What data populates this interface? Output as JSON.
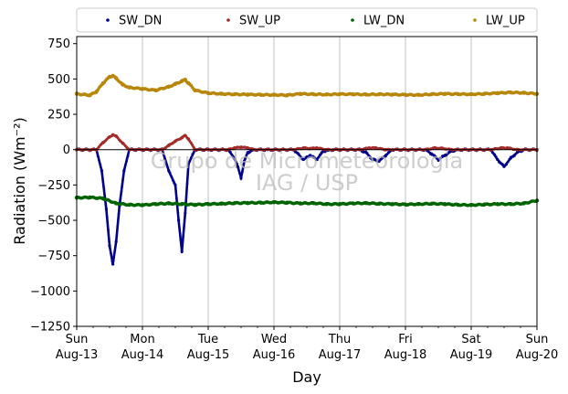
{
  "chart_data": {
    "type": "scatter",
    "ylabel": "Radiation (Wm⁻²)",
    "xlabel": "Day",
    "ylim": [
      -1250,
      800
    ],
    "yticks": [
      750,
      500,
      250,
      0,
      -250,
      -500,
      -750,
      -1000,
      -1250
    ],
    "ytick_labels": [
      "750",
      "500",
      "250",
      "0",
      "−250",
      "−500",
      "−750",
      "−1000",
      "−1250"
    ],
    "xlim": [
      0,
      7
    ],
    "xticks": [
      {
        "day": 0,
        "weekday": "Sun",
        "date": "Aug-13"
      },
      {
        "day": 1,
        "weekday": "Mon",
        "date": "Aug-14"
      },
      {
        "day": 2,
        "weekday": "Tue",
        "date": "Aug-15"
      },
      {
        "day": 3,
        "weekday": "Wed",
        "date": "Aug-16"
      },
      {
        "day": 4,
        "weekday": "Thu",
        "date": "Aug-17"
      },
      {
        "day": 5,
        "weekday": "Fri",
        "date": "Aug-18"
      },
      {
        "day": 6,
        "weekday": "Sat",
        "date": "Aug-19"
      },
      {
        "day": 7,
        "weekday": "Sun",
        "date": "Aug-20"
      }
    ],
    "grid": "vertical",
    "legend_position": "top",
    "watermark": [
      "Grupo de Micrometeorologia",
      "IAG / USP"
    ],
    "series": [
      {
        "name": "SW_DN",
        "color": "#00008b",
        "x": [
          0.0,
          0.3,
          0.38,
          0.45,
          0.5,
          0.55,
          0.6,
          0.65,
          0.72,
          0.8,
          0.9,
          1.0,
          1.3,
          1.4,
          1.5,
          1.55,
          1.6,
          1.65,
          1.7,
          1.8,
          1.9,
          2.0,
          2.3,
          2.4,
          2.45,
          2.5,
          2.55,
          2.6,
          2.7,
          2.8,
          2.9,
          3.0,
          3.3,
          3.45,
          3.55,
          3.65,
          3.75,
          3.9,
          4.0,
          4.3,
          4.4,
          4.5,
          4.6,
          4.7,
          4.8,
          5.0,
          5.3,
          5.4,
          5.5,
          5.6,
          5.7,
          5.8,
          6.0,
          6.3,
          6.4,
          6.5,
          6.6,
          6.7,
          6.8,
          7.0
        ],
        "y": [
          0,
          0,
          -150,
          -420,
          -680,
          -810,
          -650,
          -400,
          -150,
          0,
          0,
          0,
          0,
          -150,
          -250,
          -500,
          -720,
          -450,
          -100,
          0,
          0,
          0,
          0,
          -60,
          -120,
          -200,
          -80,
          -20,
          0,
          0,
          0,
          0,
          0,
          -70,
          -40,
          -70,
          -10,
          0,
          0,
          0,
          -20,
          -70,
          -80,
          -40,
          0,
          0,
          0,
          -30,
          -70,
          -40,
          -10,
          0,
          0,
          0,
          -70,
          -120,
          -60,
          -20,
          0,
          0
        ]
      },
      {
        "name": "SW_UP",
        "color": "#a52a2a",
        "x": [
          0.0,
          0.3,
          0.4,
          0.5,
          0.55,
          0.6,
          0.7,
          0.8,
          1.0,
          1.3,
          1.4,
          1.5,
          1.6,
          1.65,
          1.7,
          1.8,
          2.0,
          2.3,
          2.4,
          2.5,
          2.6,
          2.7,
          3.0,
          3.3,
          3.45,
          3.55,
          3.65,
          3.8,
          4.0,
          4.3,
          4.45,
          4.55,
          4.7,
          5.0,
          5.3,
          5.45,
          5.55,
          5.7,
          6.0,
          6.3,
          6.45,
          6.55,
          6.7,
          7.0
        ],
        "y": [
          0,
          0,
          50,
          90,
          105,
          95,
          45,
          0,
          0,
          0,
          30,
          60,
          85,
          100,
          75,
          0,
          0,
          0,
          12,
          18,
          12,
          0,
          0,
          0,
          12,
          8,
          12,
          0,
          0,
          0,
          12,
          12,
          0,
          0,
          0,
          12,
          10,
          0,
          0,
          0,
          12,
          12,
          0,
          0
        ]
      },
      {
        "name": "LW_DN",
        "color": "#006400",
        "x": [
          0.0,
          0.2,
          0.4,
          0.6,
          0.8,
          1.0,
          1.2,
          1.4,
          1.6,
          1.8,
          2.0,
          2.2,
          2.4,
          2.6,
          2.8,
          3.0,
          3.2,
          3.4,
          3.6,
          3.8,
          4.0,
          4.2,
          4.4,
          4.6,
          4.8,
          5.0,
          5.2,
          5.4,
          5.6,
          5.8,
          6.0,
          6.2,
          6.4,
          6.6,
          6.8,
          7.0
        ],
        "y": [
          -340,
          -338,
          -345,
          -380,
          -390,
          -392,
          -385,
          -380,
          -385,
          -390,
          -385,
          -382,
          -378,
          -377,
          -375,
          -372,
          -375,
          -380,
          -378,
          -385,
          -385,
          -380,
          -378,
          -382,
          -385,
          -388,
          -385,
          -382,
          -385,
          -390,
          -392,
          -388,
          -385,
          -385,
          -380,
          -360
        ]
      },
      {
        "name": "LW_UP",
        "color": "#b8860b",
        "x": [
          0.0,
          0.2,
          0.3,
          0.4,
          0.5,
          0.55,
          0.6,
          0.7,
          0.8,
          1.0,
          1.2,
          1.4,
          1.5,
          1.6,
          1.65,
          1.7,
          1.8,
          2.0,
          2.2,
          2.4,
          2.6,
          2.8,
          3.0,
          3.2,
          3.4,
          3.6,
          3.8,
          4.0,
          4.2,
          4.4,
          4.6,
          4.8,
          5.0,
          5.2,
          5.4,
          5.6,
          5.8,
          6.0,
          6.2,
          6.4,
          6.6,
          6.8,
          7.0
        ],
        "y": [
          395,
          385,
          410,
          470,
          515,
          522,
          505,
          460,
          440,
          430,
          420,
          445,
          465,
          485,
          495,
          470,
          420,
          400,
          395,
          392,
          390,
          388,
          388,
          385,
          395,
          392,
          390,
          393,
          392,
          390,
          392,
          390,
          388,
          387,
          392,
          395,
          393,
          392,
          395,
          400,
          405,
          402,
          395
        ]
      }
    ]
  }
}
